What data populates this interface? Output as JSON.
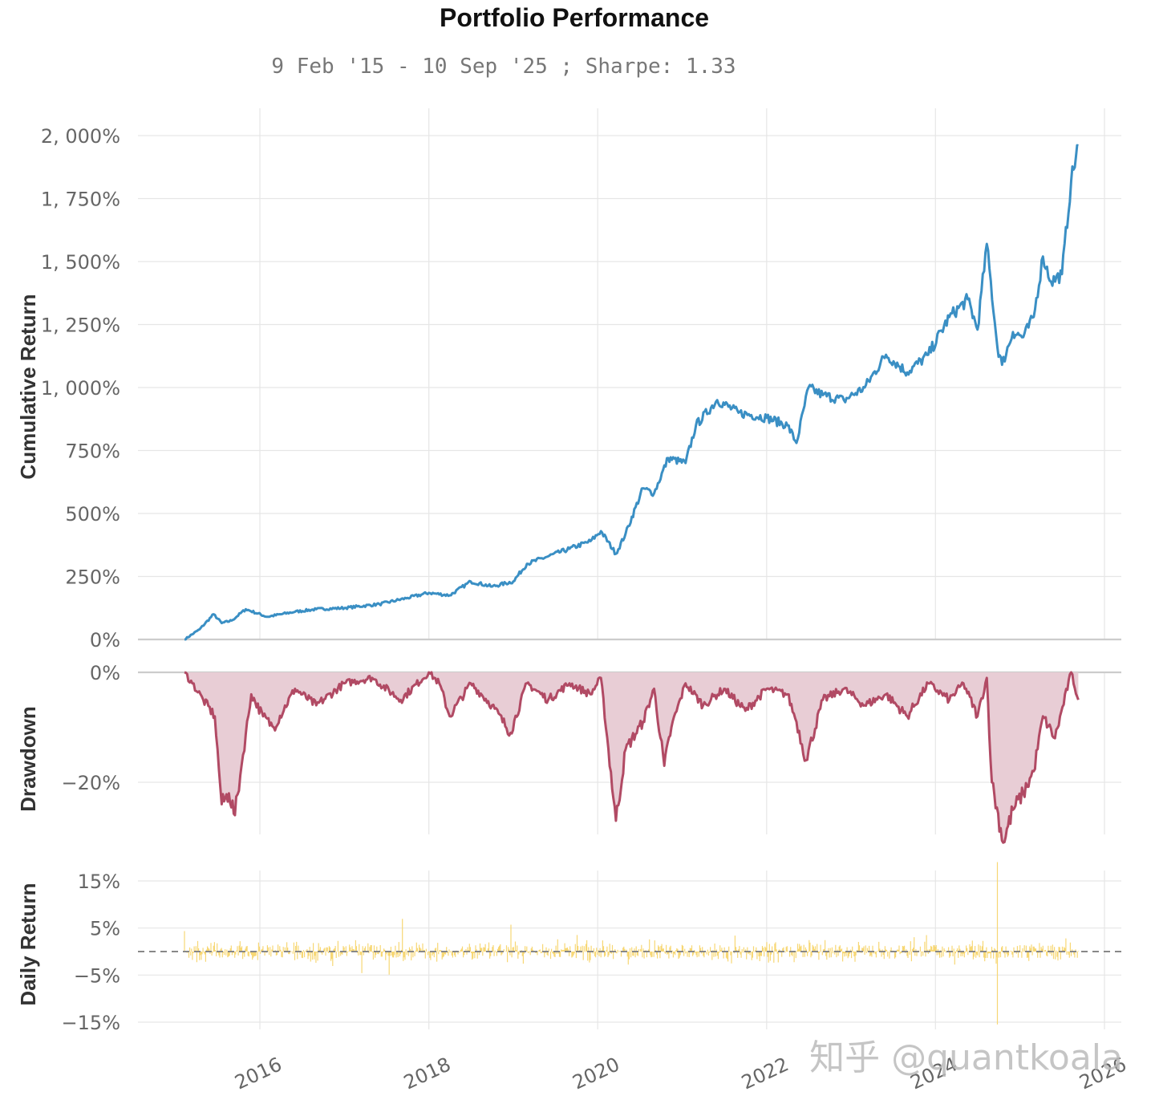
{
  "title": "Portfolio Performance",
  "subtitle": "9 Feb '15 - 10 Sep '25 ;  Sharpe: 1.33",
  "watermark": "知乎 @quantkoala",
  "colors": {
    "cumulative": "#3a8fc4",
    "drawdown": "#b14a64",
    "drawdown_fill": "#e8cdd5",
    "daily": "#f7d774",
    "grid": "#e6e6e6",
    "zero": "#cccccc",
    "dashed": "#888888"
  },
  "chart_data": {
    "type": "line",
    "x_ticks": [
      "2016",
      "2018",
      "2020",
      "2022",
      "2024",
      "2026"
    ],
    "x_range": [
      "2015-02-09",
      "2025-09-10"
    ],
    "panels": [
      {
        "name": "cumulative",
        "ylabel": "Cumulative Return",
        "yticks": [
          "0%",
          "250%",
          "500%",
          "750%",
          "1, 000%",
          "1, 250%",
          "1, 500%",
          "1, 750%",
          "2, 000%"
        ],
        "ytick_values": [
          0,
          250,
          500,
          750,
          1000,
          1250,
          1500,
          1750,
          2000
        ],
        "ylim": [
          0,
          2000
        ],
        "series": {
          "x": [
            "2015-02-09",
            "2015-04-15",
            "2015-06-15",
            "2015-07-20",
            "2015-09-01",
            "2015-11-01",
            "2016-02-01",
            "2016-06-01",
            "2016-09-01",
            "2017-01-01",
            "2017-06-01",
            "2017-10-01",
            "2018-01-01",
            "2018-04-01",
            "2018-07-01",
            "2018-10-01",
            "2019-01-01",
            "2019-03-01",
            "2019-06-01",
            "2019-09-01",
            "2019-12-01",
            "2020-01-15",
            "2020-03-20",
            "2020-05-01",
            "2020-07-15",
            "2020-09-01",
            "2020-11-01",
            "2021-01-15",
            "2021-03-01",
            "2021-06-01",
            "2021-09-01",
            "2022-01-01",
            "2022-04-01",
            "2022-05-10",
            "2022-07-01",
            "2022-09-01",
            "2022-12-01",
            "2023-03-01",
            "2023-06-01",
            "2023-09-01",
            "2023-12-01",
            "2024-03-01",
            "2024-05-20",
            "2024-07-01",
            "2024-08-10",
            "2024-09-25",
            "2024-10-15",
            "2024-12-01",
            "2025-01-15",
            "2025-03-01",
            "2025-04-10",
            "2025-05-15",
            "2025-07-01",
            "2025-08-10",
            "2025-09-10"
          ],
          "values": [
            0,
            40,
            100,
            65,
            75,
            120,
            90,
            110,
            120,
            125,
            140,
            165,
            185,
            175,
            230,
            210,
            230,
            300,
            330,
            360,
            390,
            430,
            340,
            420,
            600,
            580,
            720,
            700,
            850,
            950,
            900,
            880,
            850,
            780,
            1000,
            970,
            950,
            1000,
            1130,
            1060,
            1130,
            1280,
            1350,
            1230,
            1570,
            1160,
            1090,
            1220,
            1200,
            1280,
            1520,
            1420,
            1450,
            1820,
            1960
          ]
        }
      },
      {
        "name": "drawdown",
        "ylabel": "Drawdown",
        "yticks": [
          "0%",
          "−20%"
        ],
        "ytick_values": [
          0,
          -20
        ],
        "ylim": [
          -30.5,
          0
        ],
        "series": {
          "x": [
            "2015-02-09",
            "2015-03-15",
            "2015-05-01",
            "2015-06-20",
            "2015-07-20",
            "2015-08-20",
            "2015-09-15",
            "2015-10-20",
            "2015-11-25",
            "2016-01-15",
            "2016-03-01",
            "2016-06-01",
            "2016-09-01",
            "2017-01-01",
            "2017-05-01",
            "2017-09-01",
            "2018-01-01",
            "2018-02-15",
            "2018-04-01",
            "2018-07-01",
            "2018-10-01",
            "2018-12-20",
            "2019-03-01",
            "2019-06-01",
            "2019-09-01",
            "2019-12-01",
            "2020-01-15",
            "2020-03-20",
            "2020-05-01",
            "2020-07-15",
            "2020-09-01",
            "2020-10-15",
            "2020-11-15",
            "2021-01-15",
            "2021-04-01",
            "2021-07-01",
            "2021-10-01",
            "2022-01-01",
            "2022-04-01",
            "2022-05-10",
            "2022-06-20",
            "2022-09-01",
            "2022-12-01",
            "2023-03-01",
            "2023-06-01",
            "2023-09-01",
            "2023-12-01",
            "2024-03-01",
            "2024-05-01",
            "2024-07-01",
            "2024-08-10",
            "2024-09-01",
            "2024-10-20",
            "2024-12-01",
            "2025-01-15",
            "2025-03-01",
            "2025-04-10",
            "2025-06-01",
            "2025-08-10",
            "2025-09-10"
          ],
          "values": [
            0,
            -2,
            -5,
            -8,
            -24,
            -22,
            -26,
            -15,
            -4,
            -8,
            -10,
            -3,
            -6,
            -2,
            -1,
            -5,
            0,
            -2,
            -8,
            -2,
            -6,
            -11,
            -2,
            -5,
            -2,
            -4,
            -1,
            -27,
            -14,
            -9,
            -3,
            -17,
            -10,
            -2,
            -6,
            -3,
            -7,
            -3,
            -4,
            -9,
            -16,
            -5,
            -3,
            -6,
            -4,
            -8,
            -2,
            -5,
            -2,
            -8,
            -1,
            -20,
            -31,
            -25,
            -22,
            -18,
            -8,
            -12,
            0,
            -5
          ]
        }
      },
      {
        "name": "daily_return",
        "ylabel": "Daily Return",
        "yticks": [
          "15%",
          "5%",
          "−5%",
          "−15%"
        ],
        "ytick_values": [
          15,
          5,
          -5,
          -15
        ],
        "ylim": [
          -15.5,
          20
        ],
        "reference_line": 0
      }
    ]
  }
}
